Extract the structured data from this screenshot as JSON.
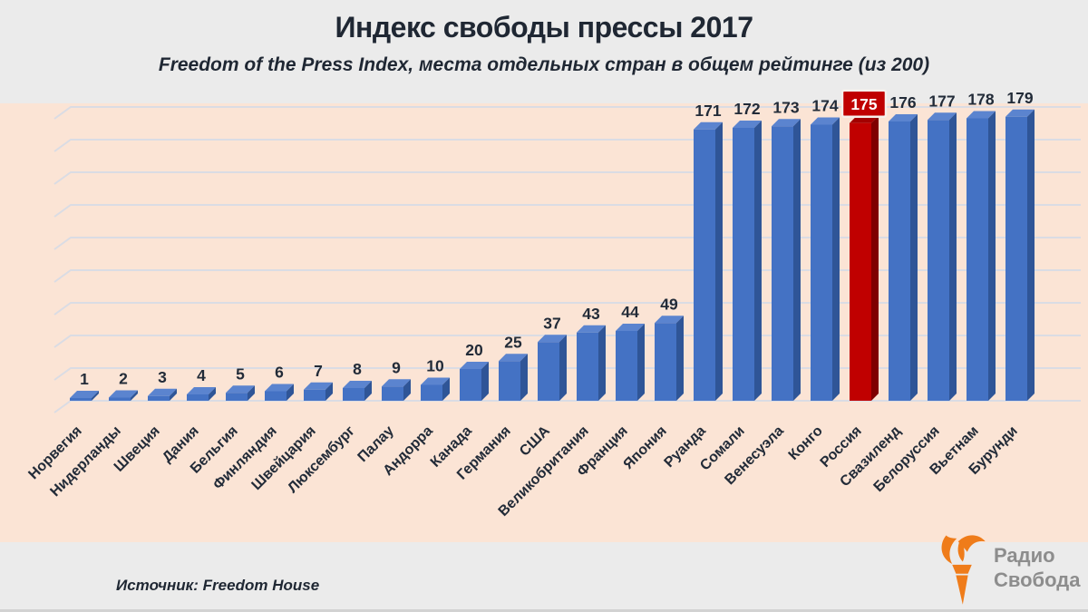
{
  "header": {
    "title": "Индекс свободы прессы 2017",
    "subtitle": "Freedom of the Press Index, места отдельных стран в общем рейтинге (из 200)"
  },
  "chart_data": {
    "type": "bar",
    "title": "Индекс свободы прессы 2017",
    "subtitle": "Freedom of the Press Index, места отдельных стран в общем рейтинге (из 200)",
    "categories": [
      "Норвегия",
      "Нидерланды",
      "Швеция",
      "Дания",
      "Бельгия",
      "Финляндия",
      "Швейцария",
      "Люксембург",
      "Палау",
      "Андорра",
      "Канада",
      "Германия",
      "США",
      "Великобритания",
      "Франция",
      "Япония",
      "Руанда",
      "Сомали",
      "Венесуэла",
      "Конго",
      "Россия",
      "Свазиленд",
      "Белоруссия",
      "Вьетнам",
      "Бурунди"
    ],
    "values": [
      1,
      2,
      3,
      4,
      5,
      6,
      7,
      8,
      9,
      10,
      20,
      25,
      37,
      43,
      44,
      49,
      171,
      172,
      173,
      174,
      175,
      176,
      177,
      178,
      179
    ],
    "highlight_category": "Россия",
    "highlight_index": 20,
    "highlight_value": 175,
    "xlabel": "",
    "ylabel": "",
    "ylim": [
      0,
      180
    ],
    "gridline_step": 20,
    "grid": true,
    "legend": false,
    "style_3d": true,
    "colors": {
      "bar_front": "#4472c4",
      "bar_top": "#5b84cf",
      "bar_side": "#2f5597",
      "highlight_front": "#c00000",
      "highlight_top": "#a30000",
      "highlight_side": "#7f0000",
      "plot_bg": "#fbe4d5",
      "page_bg": "#ebebeb",
      "gridline": "#dadce4",
      "label_text": "#222b38",
      "highlight_label_bg": "#c00000",
      "highlight_label_border": "#f6f1ec",
      "highlight_label_text": "#ffffff"
    }
  },
  "footer": {
    "source": "Источник: Freedom House",
    "logo": {
      "line1": "Радио",
      "line2": "Свобода",
      "brand_color": "#ef7c1a"
    }
  }
}
